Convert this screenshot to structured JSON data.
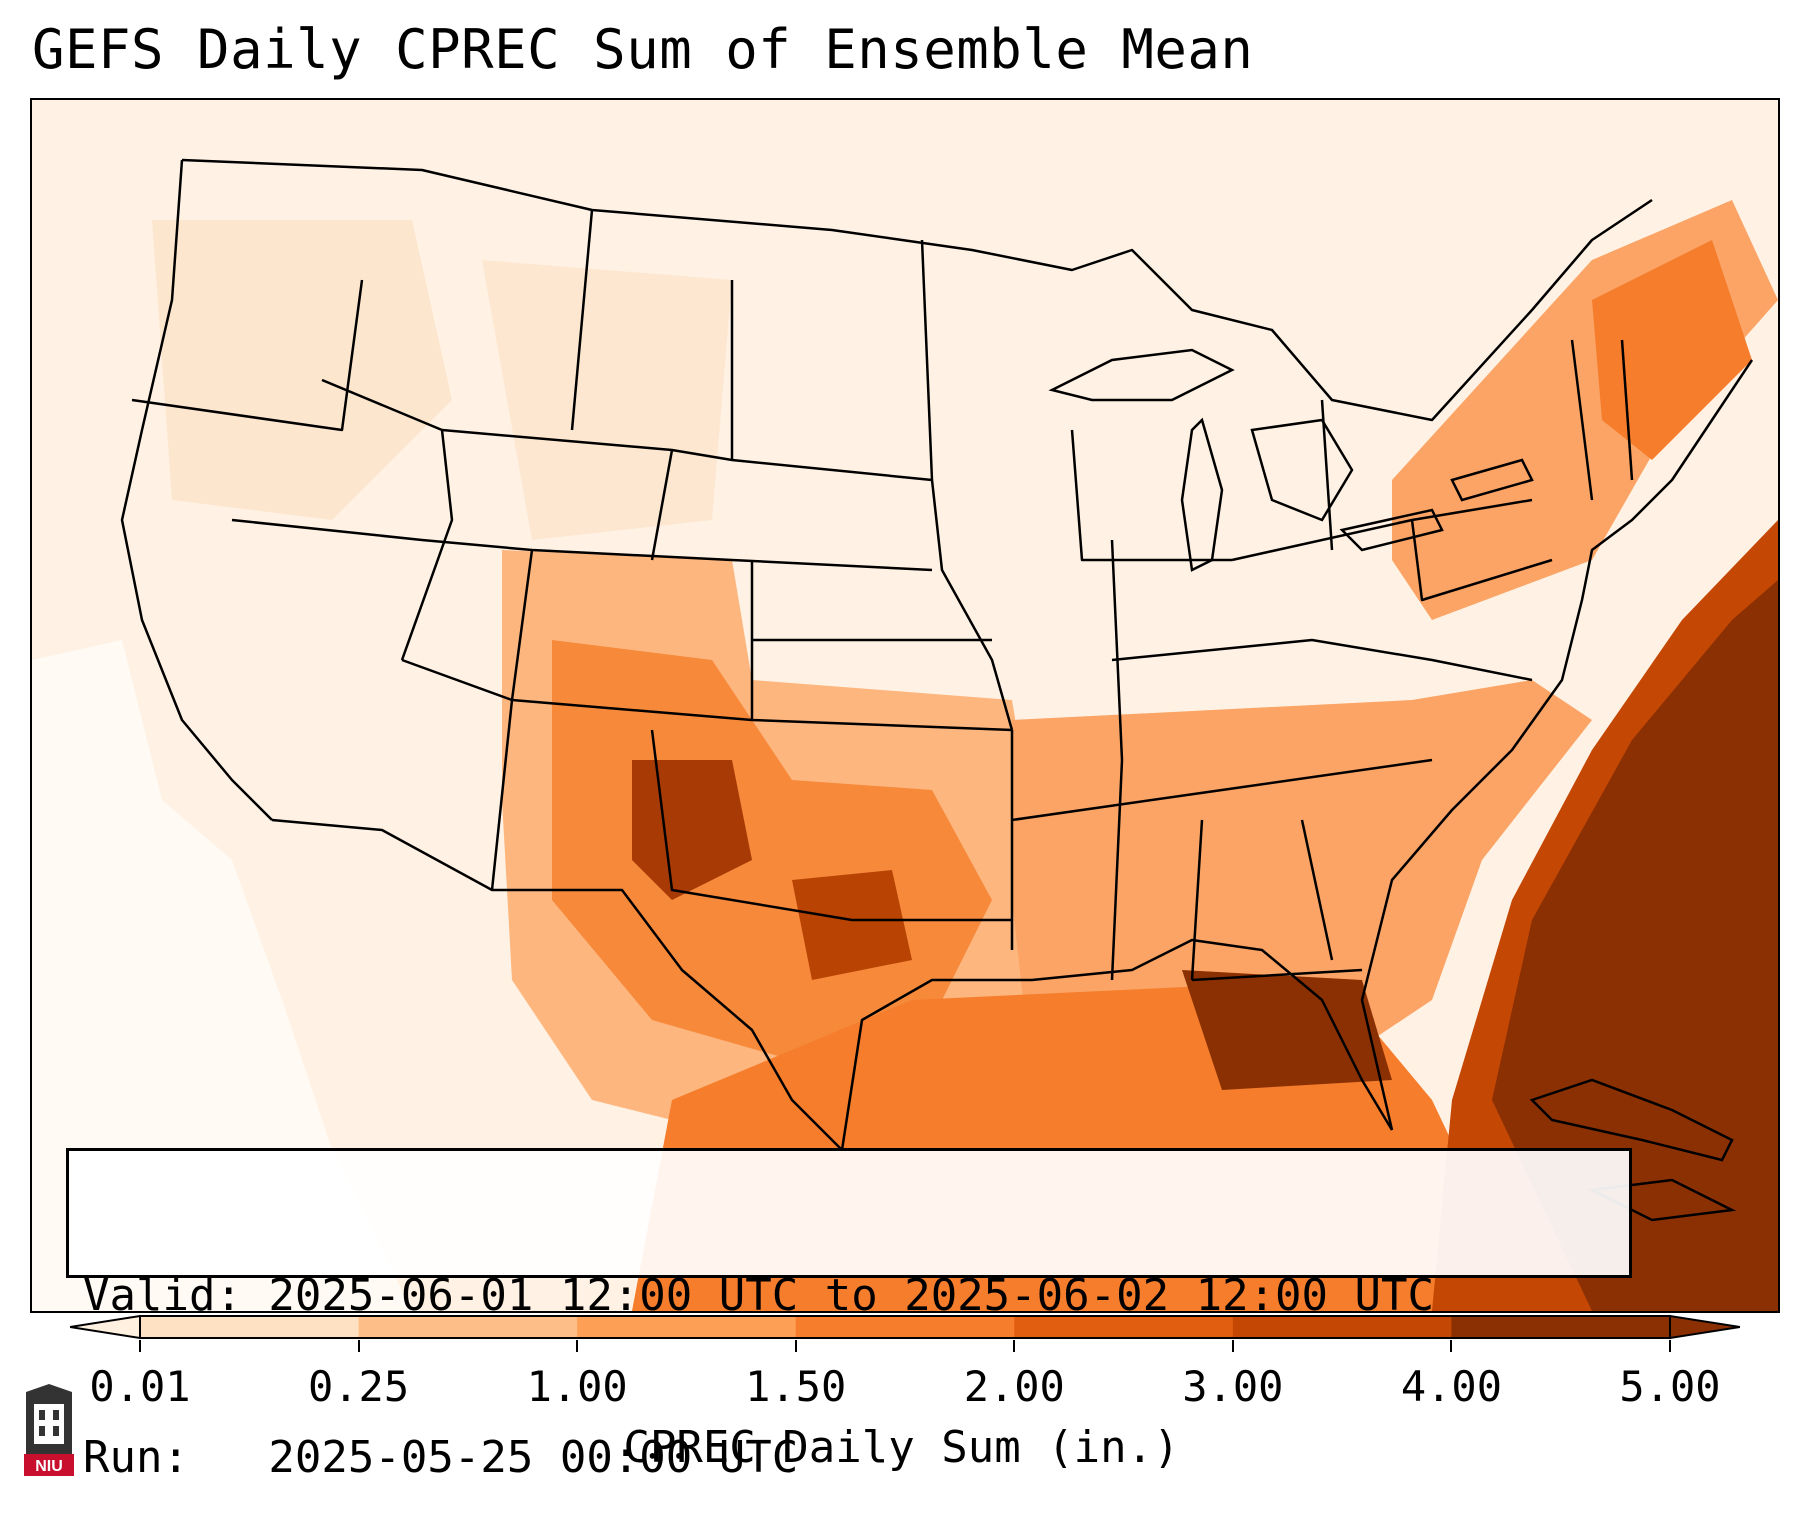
{
  "title": "GEFS Daily CPREC Sum of Ensemble Mean",
  "info": {
    "valid_line": "Valid: 2025-06-01 12:00 UTC to 2025-06-02 12:00 UTC",
    "run_line": "Run:   2025-05-25 00:00 UTC"
  },
  "colorbar": {
    "label": "CPREC Daily Sum (in.)",
    "ticks": [
      "0.01",
      "0.25",
      "1.00",
      "1.50",
      "2.00",
      "3.00",
      "4.00",
      "5.00"
    ],
    "colors": [
      "#fff0e0",
      "#fee0c2",
      "#fdbf87",
      "#fd9f55",
      "#f57d2c",
      "#e15e10",
      "#c44704",
      "#8b3003"
    ]
  },
  "logo": {
    "text": "NIU",
    "color": "#c8102e"
  }
}
